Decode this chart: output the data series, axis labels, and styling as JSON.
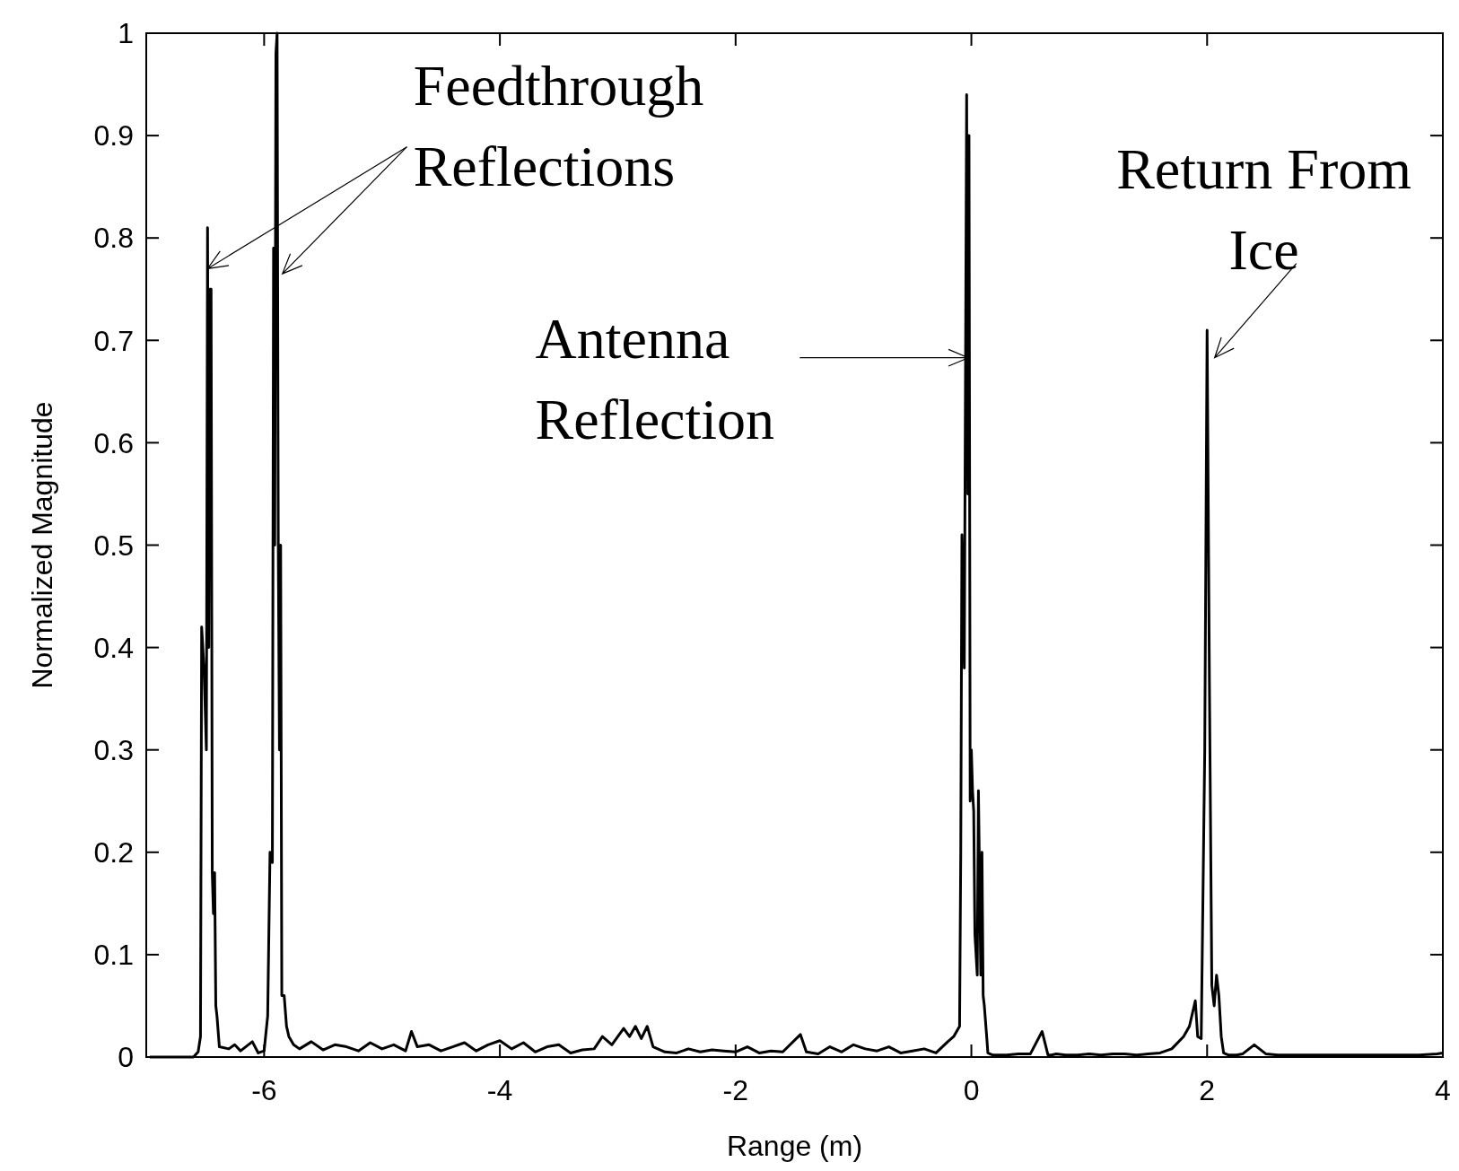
{
  "chart_data": {
    "type": "line",
    "xlabel": "Range (m)",
    "ylabel": "Normalized Magnitude",
    "xlim": [
      -7,
      4
    ],
    "ylim": [
      0,
      1
    ],
    "xticks": [
      -6,
      -4,
      -2,
      0,
      2,
      4
    ],
    "yticks": [
      0,
      0.1,
      0.2,
      0.3,
      0.4,
      0.5,
      0.6,
      0.7,
      0.8,
      0.9,
      1
    ],
    "annotations": [
      {
        "text": "Feedthrough\nReflections",
        "x": -6.48,
        "y": 0.77
      },
      "Antenna\nReflection",
      "Return From\nIce"
    ],
    "series": [
      {
        "color": "#000000",
        "x": [
          -6.97,
          -6.6,
          -6.56,
          -6.54,
          -6.53,
          -6.51,
          -6.49,
          -6.48,
          -6.47,
          -6.46,
          -6.45,
          -6.44,
          -6.43,
          -6.42,
          -6.41,
          -6.4,
          -6.38,
          -6.3,
          -6.25,
          -6.2,
          -6.1,
          -6.05,
          -6.0,
          -5.97,
          -5.95,
          -5.93,
          -5.92,
          -5.91,
          -5.9,
          -5.89,
          -5.88,
          -5.87,
          -5.86,
          -5.85,
          -5.83,
          -5.81,
          -5.79,
          -5.75,
          -5.7,
          -5.6,
          -5.5,
          -5.4,
          -5.3,
          -5.2,
          -5.1,
          -5.0,
          -4.9,
          -4.8,
          -4.75,
          -4.7,
          -4.6,
          -4.5,
          -4.4,
          -4.3,
          -4.2,
          -4.1,
          -4.0,
          -3.9,
          -3.8,
          -3.7,
          -3.6,
          -3.5,
          -3.4,
          -3.3,
          -3.2,
          -3.13,
          -3.05,
          -2.95,
          -2.9,
          -2.85,
          -2.8,
          -2.75,
          -2.7,
          -2.6,
          -2.5,
          -2.4,
          -2.3,
          -2.2,
          -2.1,
          -2.0,
          -1.9,
          -1.8,
          -1.7,
          -1.6,
          -1.45,
          -1.4,
          -1.3,
          -1.2,
          -1.1,
          -1.0,
          -0.9,
          -0.8,
          -0.7,
          -0.6,
          -0.5,
          -0.4,
          -0.3,
          -0.2,
          -0.15,
          -0.1,
          -0.09,
          -0.08,
          -0.06,
          -0.04,
          -0.03,
          -0.02,
          -0.01,
          0.0,
          0.01,
          0.02,
          0.03,
          0.05,
          0.06,
          0.08,
          0.09,
          0.1,
          0.11,
          0.13,
          0.14,
          0.16,
          0.18,
          0.2,
          0.3,
          0.4,
          0.5,
          0.6,
          0.65,
          0.68,
          0.72,
          0.8,
          0.9,
          1.0,
          1.1,
          1.2,
          1.3,
          1.4,
          1.5,
          1.6,
          1.7,
          1.8,
          1.85,
          1.9,
          1.92,
          1.95,
          1.98,
          2.0,
          2.02,
          2.04,
          2.06,
          2.08,
          2.1,
          2.12,
          2.14,
          2.16,
          2.18,
          2.22,
          2.25,
          2.3,
          2.4,
          2.5,
          2.6,
          2.65,
          2.7,
          2.8,
          3.0,
          3.2,
          3.4,
          3.6,
          3.8,
          3.95,
          4.0
        ],
        "values": [
          0,
          0,
          0.005,
          0.02,
          0.42,
          0.38,
          0.3,
          0.81,
          0.4,
          0.75,
          0.75,
          0.18,
          0.14,
          0.18,
          0.05,
          0.04,
          0.01,
          0.008,
          0.012,
          0.006,
          0.015,
          0.004,
          0.006,
          0.04,
          0.2,
          0.19,
          0.79,
          0.5,
          0.98,
          1.0,
          0.5,
          0.3,
          0.5,
          0.06,
          0.06,
          0.03,
          0.02,
          0.012,
          0.008,
          0.015,
          0.007,
          0.012,
          0.01,
          0.006,
          0.014,
          0.008,
          0.012,
          0.006,
          0.025,
          0.01,
          0.012,
          0.006,
          0.01,
          0.014,
          0.006,
          0.012,
          0.016,
          0.008,
          0.014,
          0.005,
          0.01,
          0.012,
          0.004,
          0.007,
          0.008,
          0.02,
          0.012,
          0.028,
          0.02,
          0.03,
          0.018,
          0.03,
          0.01,
          0.005,
          0.004,
          0.008,
          0.005,
          0.007,
          0.006,
          0.005,
          0.01,
          0.004,
          0.006,
          0.005,
          0.022,
          0.005,
          0.003,
          0.01,
          0.005,
          0.012,
          0.008,
          0.006,
          0.01,
          0.004,
          0.006,
          0.008,
          0.004,
          0.015,
          0.02,
          0.03,
          0.2,
          0.51,
          0.38,
          0.94,
          0.55,
          0.9,
          0.25,
          0.3,
          0.26,
          0.24,
          0.12,
          0.08,
          0.26,
          0.08,
          0.2,
          0.06,
          0.05,
          0.02,
          0.004,
          0.003,
          0.002,
          0.002,
          0.002,
          0.003,
          0.003,
          0.025,
          0.002,
          0.002,
          0.003,
          0.002,
          0.002,
          0.003,
          0.002,
          0.003,
          0.003,
          0.002,
          0.003,
          0.004,
          0.008,
          0.02,
          0.03,
          0.055,
          0.02,
          0.018,
          0.3,
          0.71,
          0.36,
          0.07,
          0.05,
          0.08,
          0.06,
          0.02,
          0.004,
          0.003,
          0.002,
          0.002,
          0.002,
          0.003,
          0.012,
          0.003,
          0.002,
          0.002,
          0.002,
          0.002,
          0.002,
          0.002,
          0.002,
          0.002,
          0.002,
          0.003,
          0.004
        ]
      }
    ]
  }
}
